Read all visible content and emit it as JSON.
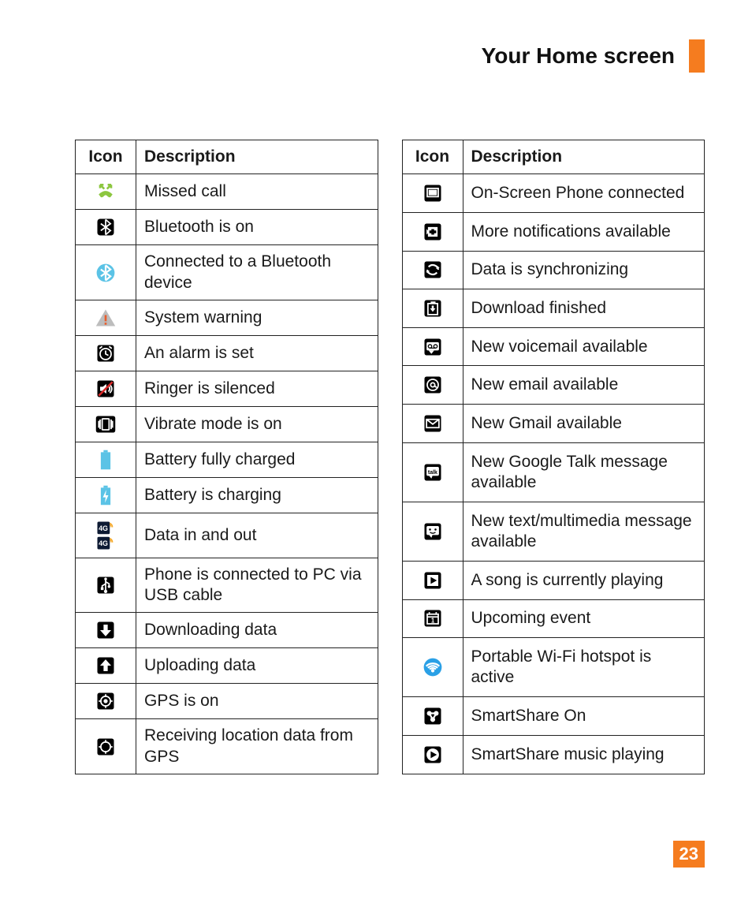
{
  "page_title": "Your Home screen",
  "page_number": "23",
  "accent_color": "#f57c1f",
  "header": {
    "icon_col": "Icon",
    "desc_col": "Description"
  },
  "left_table": [
    {
      "icon": "missed-call",
      "desc": "Missed call"
    },
    {
      "icon": "bluetooth-on",
      "desc": "Bluetooth is on"
    },
    {
      "icon": "bluetooth-connected",
      "desc": "Connected to a Bluetooth device"
    },
    {
      "icon": "warning",
      "desc": "System warning"
    },
    {
      "icon": "alarm",
      "desc": "An alarm is set"
    },
    {
      "icon": "silenced",
      "desc": "Ringer is silenced"
    },
    {
      "icon": "vibrate",
      "desc": "Vibrate mode is on"
    },
    {
      "icon": "battery-full",
      "desc": "Battery fully charged"
    },
    {
      "icon": "battery-charging",
      "desc": "Battery is charging"
    },
    {
      "icon": "data-inout",
      "desc": "Data in and out"
    },
    {
      "icon": "usb",
      "desc": "Phone is connected to PC via USB cable"
    },
    {
      "icon": "download",
      "desc": "Downloading data"
    },
    {
      "icon": "upload",
      "desc": "Uploading data"
    },
    {
      "icon": "gps-on",
      "desc": "GPS is on"
    },
    {
      "icon": "gps-recv",
      "desc": "Receiving location data from GPS"
    }
  ],
  "right_table": [
    {
      "icon": "onscreen-phone",
      "desc": "On-Screen Phone connected"
    },
    {
      "icon": "more-notifications",
      "desc": "More notifications available"
    },
    {
      "icon": "sync",
      "desc": "Data is synchronizing"
    },
    {
      "icon": "download-done",
      "desc": "Download finished"
    },
    {
      "icon": "voicemail",
      "desc": "New voicemail available"
    },
    {
      "icon": "email",
      "desc": "New email available"
    },
    {
      "icon": "gmail",
      "desc": "New Gmail available"
    },
    {
      "icon": "gtalk",
      "desc": "New Google Talk message available"
    },
    {
      "icon": "sms",
      "desc": "New text/multimedia message available"
    },
    {
      "icon": "play",
      "desc": "A song is currently playing"
    },
    {
      "icon": "event",
      "desc": "Upcoming event"
    },
    {
      "icon": "hotspot",
      "desc": "Portable Wi-Fi hotspot is active"
    },
    {
      "icon": "smartshare",
      "desc": "SmartShare On"
    },
    {
      "icon": "smartshare-music",
      "desc": "SmartShare music playing"
    }
  ],
  "icon_colors": {
    "missed_call": "#8cc63f",
    "bluetooth_connected": "#5bc3e6",
    "warning_fill": "#bdbdbd",
    "warning_mark": "#e85c2b",
    "battery": "#5bc3e6",
    "charging_bolt": "#ffffff",
    "data_4g_bg": "#0d1a33",
    "data_4g_wave": "#f5a623",
    "hotspot": "#2aa0e6",
    "black": "#000000",
    "white": "#ffffff",
    "red": "#d62828"
  }
}
